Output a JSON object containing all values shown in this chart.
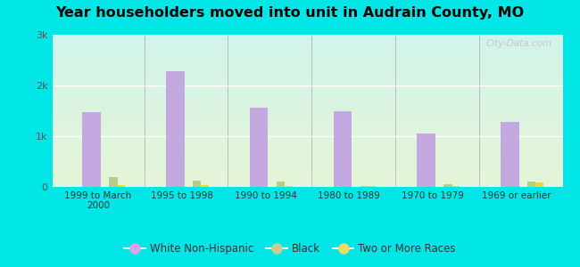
{
  "title": "Year householders moved into unit in Audrain County, MO",
  "categories": [
    "1999 to March\n2000",
    "1995 to 1998",
    "1990 to 1994",
    "1980 to 1989",
    "1970 to 1979",
    "1969 or earlier"
  ],
  "white_non_hispanic": [
    1480,
    2280,
    1560,
    1500,
    1050,
    1280
  ],
  "black": [
    190,
    130,
    110,
    20,
    60,
    110
  ],
  "two_or_more": [
    30,
    40,
    20,
    10,
    20,
    80
  ],
  "bar_colors": {
    "white_non_hispanic": "#c4a8e0",
    "black": "#b8cc88",
    "two_or_more": "#e8d840"
  },
  "ylim": [
    0,
    3000
  ],
  "yticks": [
    0,
    1000,
    2000,
    3000
  ],
  "ytick_labels": [
    "0",
    "1k",
    "2k",
    "3k"
  ],
  "outer_background": "#00e5e5",
  "watermark": "City-Data.com",
  "legend_labels": [
    "White Non-Hispanic",
    "Black",
    "Two or More Races"
  ],
  "legend_colors": [
    "#d4a8e8",
    "#c8cc90",
    "#f0dc60"
  ]
}
